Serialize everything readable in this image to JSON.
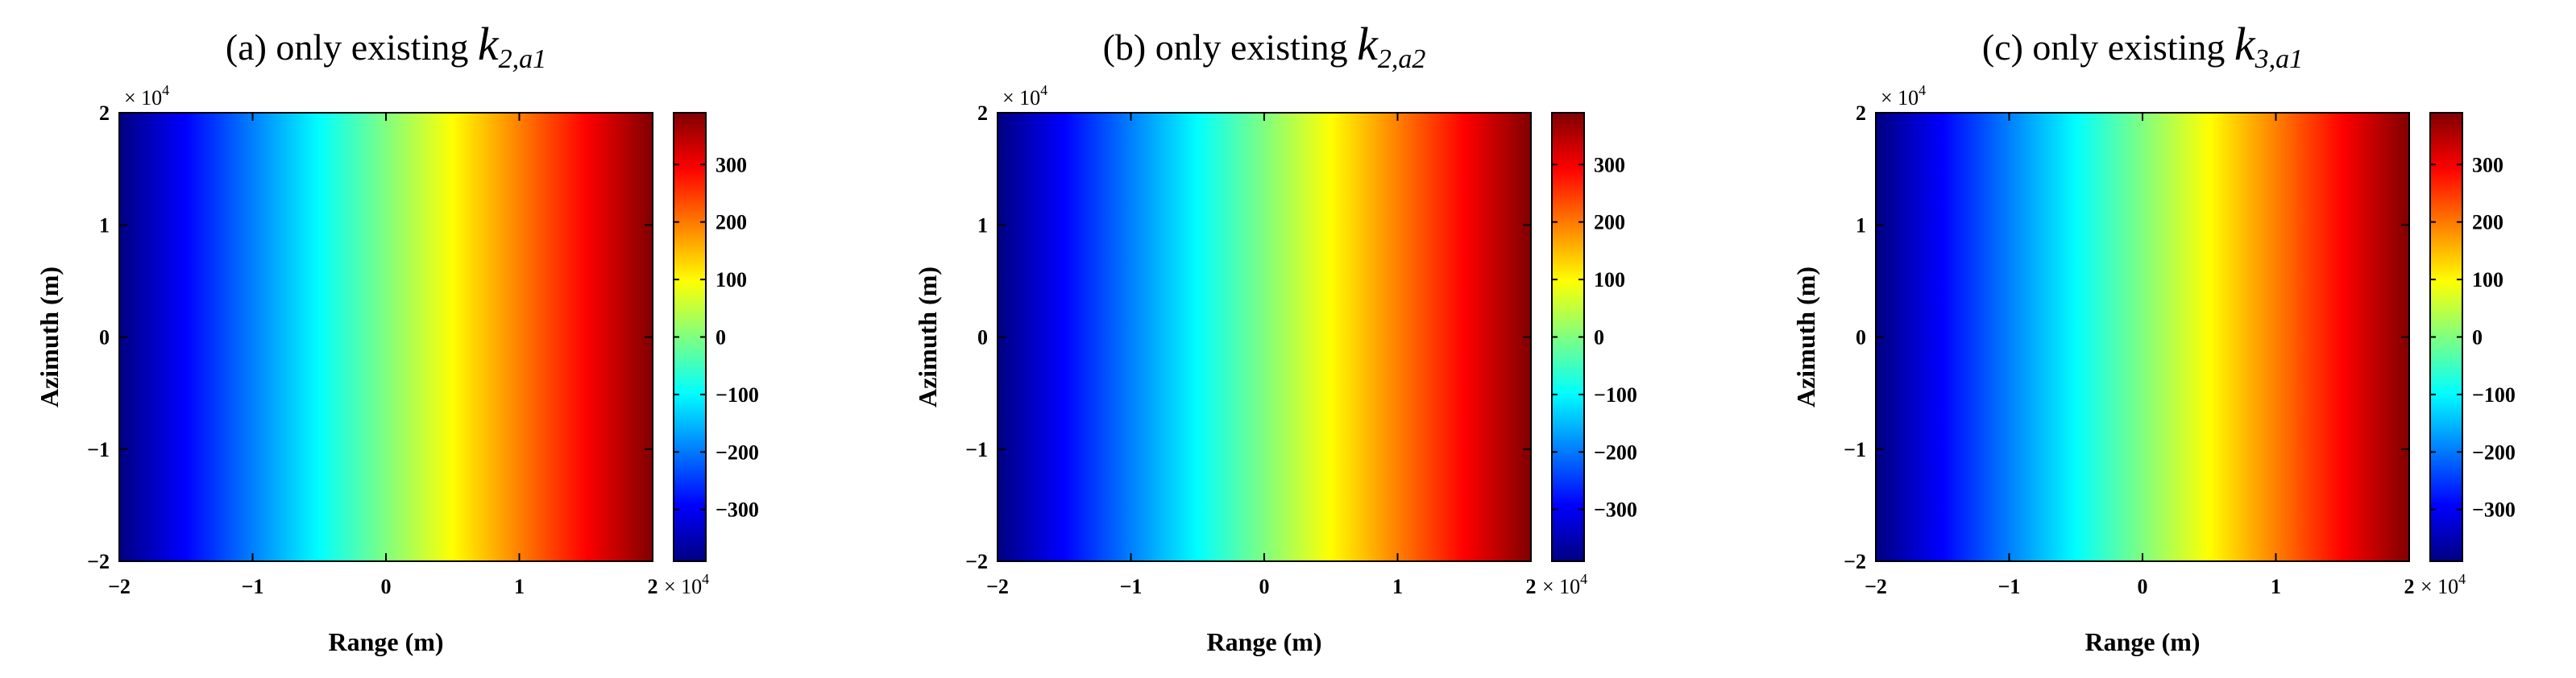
{
  "chart_data": [
    {
      "type": "heatmap",
      "title_prefix": "(a) only existing",
      "title_symbol": "k",
      "title_subscript": "2,a1",
      "xlabel": "Range (m)",
      "ylabel": "Azimuth (m)",
      "xlim": [
        -20000,
        20000
      ],
      "ylim": [
        -20000,
        20000
      ],
      "xticks": [
        "−2",
        "−1",
        "0",
        "1",
        "2"
      ],
      "yticks": [
        "−2",
        "−1",
        "0",
        "1",
        "2"
      ],
      "x_multiplier": "× 10",
      "x_multiplier_exp": "4",
      "y_multiplier": "× 10",
      "y_multiplier_exp": "4",
      "colorbar": {
        "range": [
          -390,
          390
        ],
        "ticks": [
          -300,
          -200,
          -100,
          0,
          100,
          200,
          300
        ],
        "ticklabels": [
          "−300",
          "−200",
          "−100",
          "0",
          "100",
          "200",
          "300"
        ],
        "colormap": "jet"
      },
      "field": "value varies linearly with range from about -390 at -2×10^4 m to about 390 at 2×10^4 m; constant along azimuth"
    },
    {
      "type": "heatmap",
      "title_prefix": "(b) only existing",
      "title_symbol": "k",
      "title_subscript": "2,a2",
      "xlabel": "Range (m)",
      "ylabel": "Azimuth (m)",
      "xlim": [
        -20000,
        20000
      ],
      "ylim": [
        -20000,
        20000
      ],
      "xticks": [
        "−2",
        "−1",
        "0",
        "1",
        "2"
      ],
      "yticks": [
        "−2",
        "−1",
        "0",
        "1",
        "2"
      ],
      "x_multiplier": "× 10",
      "x_multiplier_exp": "4",
      "y_multiplier": "× 10",
      "y_multiplier_exp": "4",
      "colorbar": {
        "range": [
          -390,
          390
        ],
        "ticks": [
          -300,
          -200,
          -100,
          0,
          100,
          200,
          300
        ],
        "ticklabels": [
          "−300",
          "−200",
          "−100",
          "0",
          "100",
          "200",
          "300"
        ],
        "colormap": "jet"
      },
      "field": "value varies linearly with range from about -390 at -2×10^4 m to about 390 at 2×10^4 m; constant along azimuth"
    },
    {
      "type": "heatmap",
      "title_prefix": "(c) only existing",
      "title_symbol": "k",
      "title_subscript": "3,a1",
      "xlabel": "Range (m)",
      "ylabel": "Azimuth (m)",
      "xlim": [
        -20000,
        20000
      ],
      "ylim": [
        -20000,
        20000
      ],
      "xticks": [
        "−2",
        "−1",
        "0",
        "1",
        "2"
      ],
      "yticks": [
        "−2",
        "−1",
        "0",
        "1",
        "2"
      ],
      "x_multiplier": "× 10",
      "x_multiplier_exp": "4",
      "y_multiplier": "× 10",
      "y_multiplier_exp": "4",
      "colorbar": {
        "range": [
          -390,
          390
        ],
        "ticks": [
          -300,
          -200,
          -100,
          0,
          100,
          200,
          300
        ],
        "ticklabels": [
          "−300",
          "−200",
          "−100",
          "0",
          "100",
          "200",
          "300"
        ],
        "colormap": "jet"
      },
      "field": "value varies linearly with range from about -390 at -2×10^4 m to about 390 at 2×10^4 m; constant along azimuth"
    }
  ]
}
